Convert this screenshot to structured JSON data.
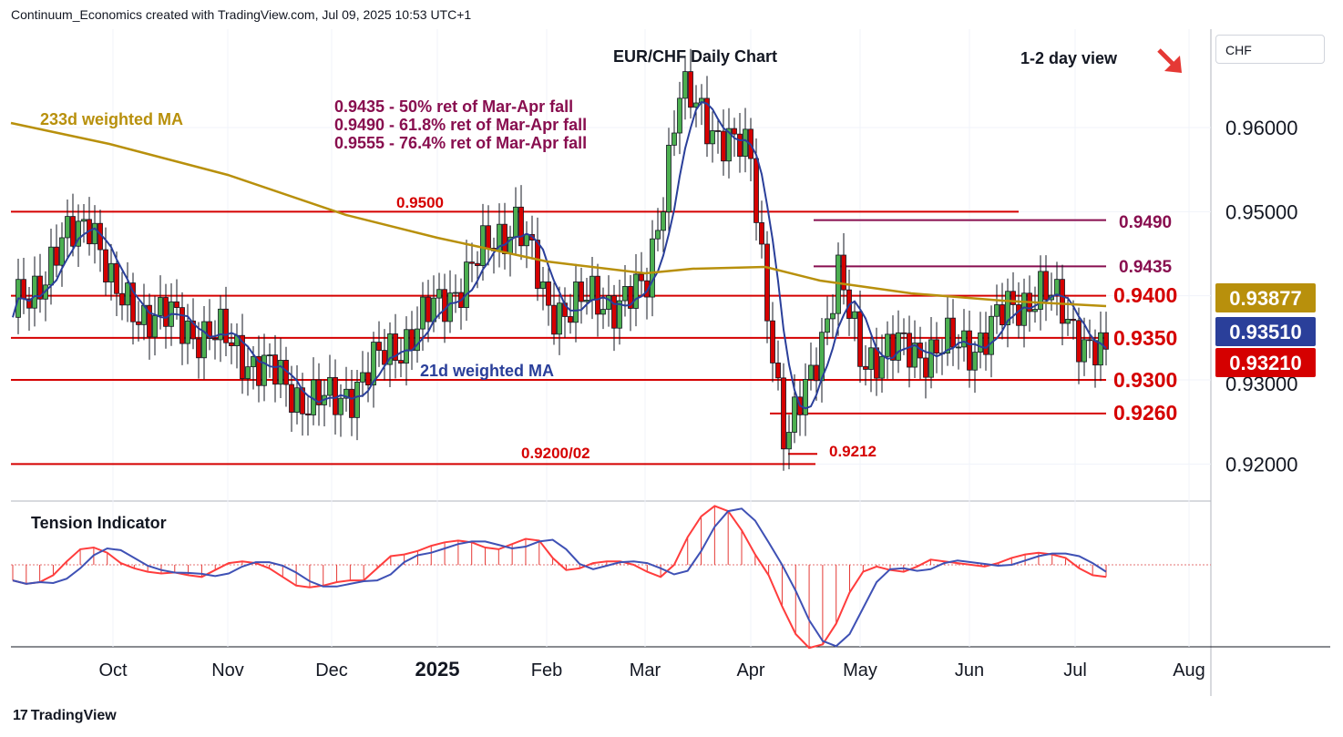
{
  "header": {
    "source": "Continuum_Economics created with TradingView.com, Jul 09, 2025 10:53 UTC+1"
  },
  "footer": {
    "brand": "TradingView"
  },
  "currency": "CHF",
  "chart_data": [
    {
      "type": "candlestick",
      "title": "EUR/CHF Daily Chart",
      "subtitle": "1-2 day view",
      "view_arrow": "down-right",
      "price_axis": {
        "ticks": [
          "0.96000",
          "0.95000",
          "0.92000"
        ],
        "partial_tick": "0.93000",
        "ylim": [
          0.9185,
          0.9645
        ]
      },
      "time_axis": {
        "labels": [
          "Oct",
          "Nov",
          "Dec",
          "2025",
          "Feb",
          "Mar",
          "Apr",
          "May",
          "Jun",
          "Jul",
          "Aug"
        ]
      },
      "indicators": [
        {
          "name": "233d weighted MA",
          "color": "#b8900c",
          "current": "0.93877"
        },
        {
          "name": "21d weighted MA",
          "color": "#2a3f9a",
          "current": "0.93510"
        }
      ],
      "last_price": {
        "value": "0.93210",
        "color": "#d50000"
      },
      "levels_red": [
        "0.9500",
        "0.9400",
        "0.9350",
        "0.9300",
        "0.9260",
        "0.9200/02",
        "0.9212"
      ],
      "levels_purple": [
        "0.9490",
        "0.9435"
      ],
      "retracement_notes": [
        "0.9435 - 50% ret of Mar-Apr fall",
        "0.9490 - 61.8% ret of Mar-Apr fall",
        "0.9555 - 76.4% ret of Mar-Apr fall"
      ],
      "key_points": [
        {
          "date": "2024-09",
          "close": 0.938
        },
        {
          "date": "2024-09-20",
          "close": 0.95
        },
        {
          "date": "2024-10",
          "close": 0.9395
        },
        {
          "date": "2024-11",
          "close": 0.9345
        },
        {
          "date": "2024-11-25",
          "close": 0.928
        },
        {
          "date": "2024-12",
          "close": 0.927
        },
        {
          "date": "2025-01",
          "close": 0.9385
        },
        {
          "date": "2025-01-27",
          "close": 0.9495
        },
        {
          "date": "2025-02",
          "close": 0.9385
        },
        {
          "date": "2025-02-28",
          "close": 0.94
        },
        {
          "date": "2025-03-12",
          "close": 0.964
        },
        {
          "date": "2025-04-01",
          "close": 0.956
        },
        {
          "date": "2025-04-11",
          "close": 0.9212
        },
        {
          "date": "2025-04-24",
          "close": 0.942
        },
        {
          "date": "2025-05",
          "close": 0.933
        },
        {
          "date": "2025-06",
          "close": 0.934
        },
        {
          "date": "2025-06-20",
          "close": 0.941
        },
        {
          "date": "2025-07-09",
          "close": 0.9321
        }
      ]
    },
    {
      "type": "histogram",
      "title": "Tension Indicator",
      "values": [
        -0.45,
        -0.55,
        -0.5,
        -0.3,
        0.1,
        0.45,
        0.5,
        0.35,
        0.05,
        -0.1,
        -0.2,
        -0.25,
        -0.22,
        -0.3,
        -0.35,
        -0.15,
        0.05,
        0.1,
        0.05,
        -0.1,
        -0.35,
        -0.6,
        -0.65,
        -0.6,
        -0.5,
        -0.45,
        -0.45,
        -0.1,
        0.25,
        0.3,
        0.4,
        0.55,
        0.65,
        0.7,
        0.65,
        0.5,
        0.45,
        0.6,
        0.75,
        0.7,
        0.2,
        -0.15,
        -0.1,
        0.05,
        0.1,
        0.1,
        0.0,
        -0.2,
        -0.35,
        0.0,
        0.8,
        1.4,
        1.7,
        1.55,
        1.0,
        0.3,
        -0.3,
        -1.2,
        -2.0,
        -2.4,
        -2.3,
        -1.7,
        -0.8,
        -0.2,
        -0.05,
        -0.15,
        -0.2,
        -0.05,
        0.15,
        0.1,
        0.05,
        0.0,
        -0.05,
        0.05,
        0.2,
        0.3,
        0.35,
        0.3,
        0.2,
        -0.1,
        -0.3,
        -0.35
      ]
    }
  ]
}
